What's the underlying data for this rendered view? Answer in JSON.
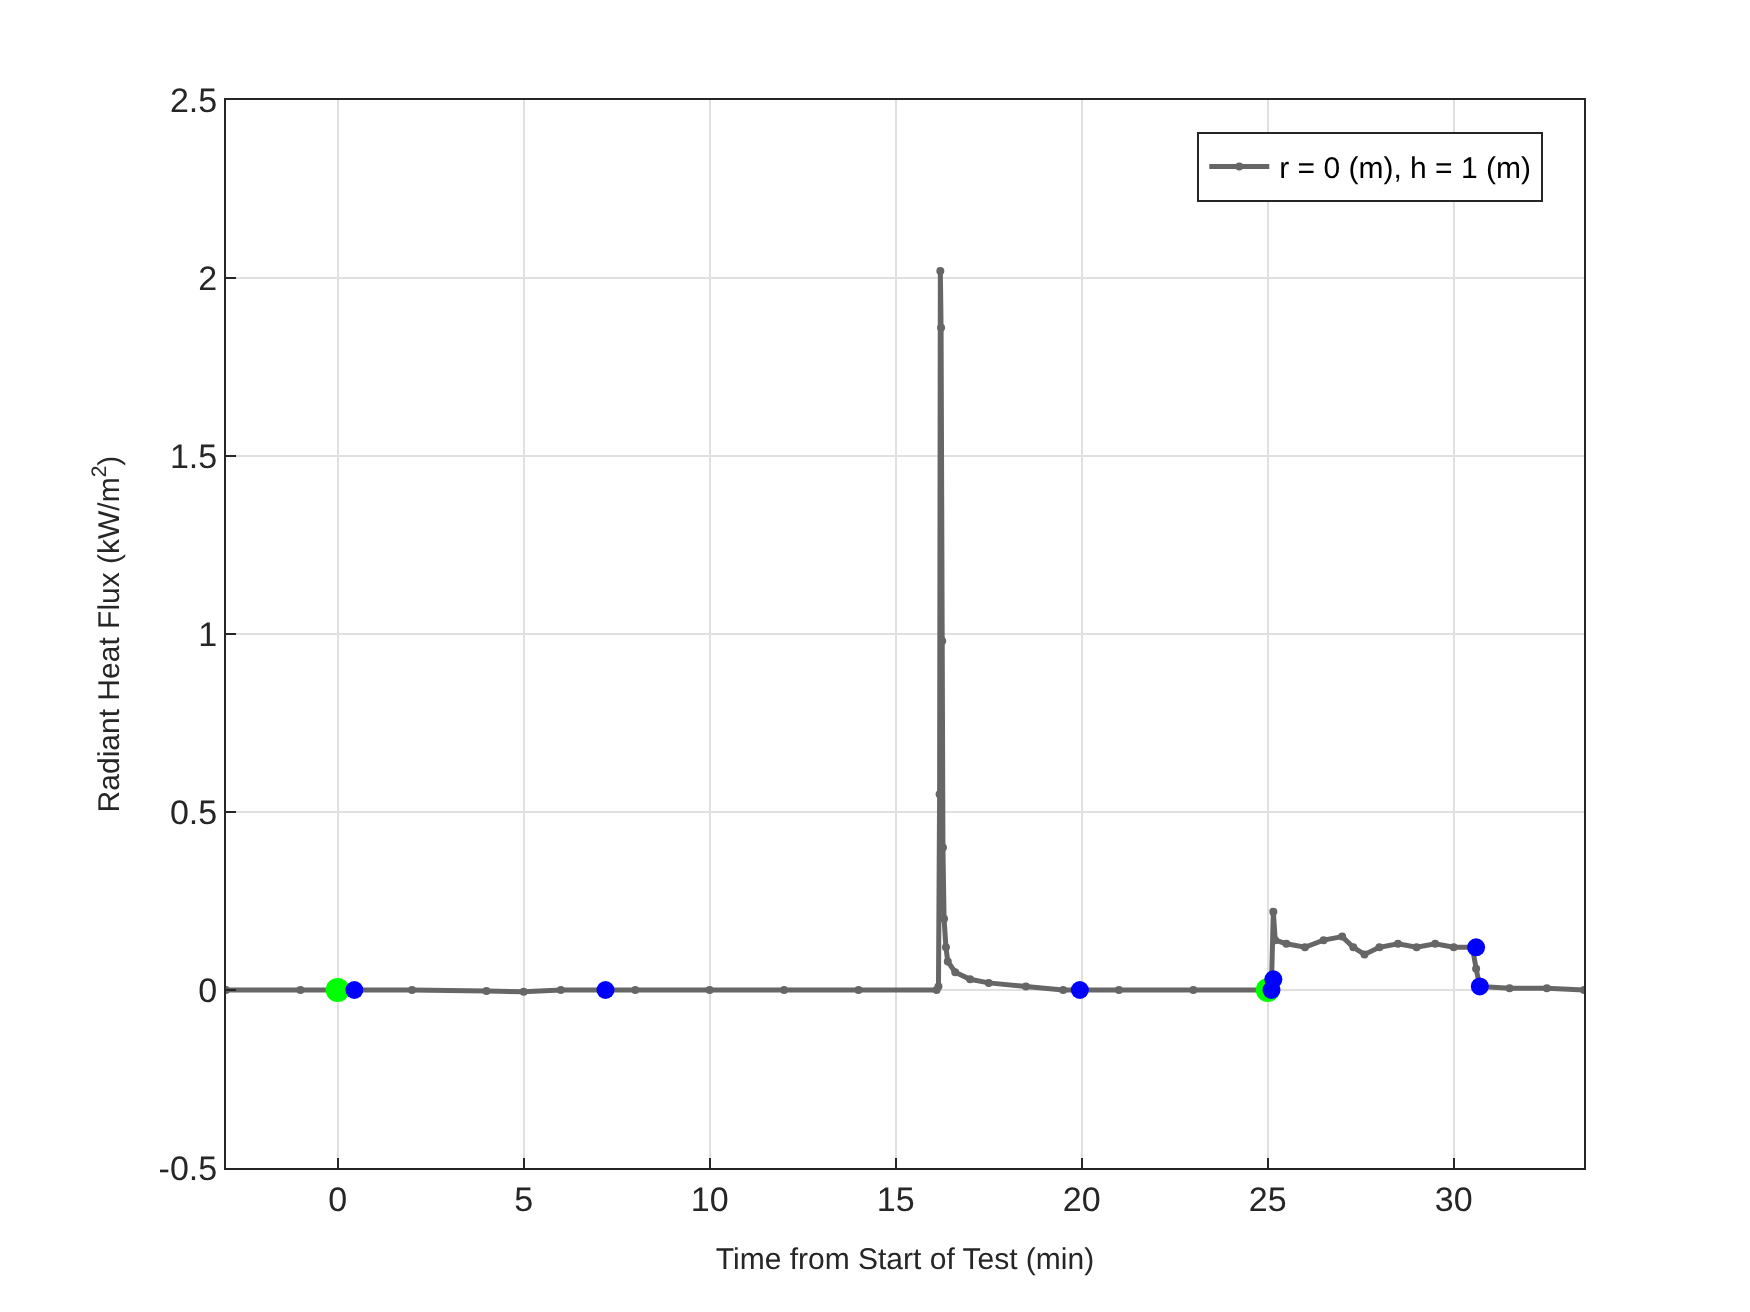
{
  "chart_data": {
    "type": "line",
    "xlabel": "Time from Start of Test (min)",
    "ylabel": "Radiant Heat Flux (kW/m$^{2}$)",
    "xlim": [
      -3,
      33.5
    ],
    "xticks": [
      0,
      5,
      10,
      15,
      20,
      25,
      30
    ],
    "ylim": [
      -0.5,
      2.5
    ],
    "yticks": [
      -0.5,
      0,
      0.5,
      1,
      1.5,
      2,
      2.5
    ],
    "grid": true,
    "legend": "top right",
    "line_style": "solid",
    "series": [
      {
        "name": "r = 0 (m), h = 1 (m)",
        "marker": "circle",
        "color": "#666666",
        "x": [
          -3,
          -1,
          0,
          2,
          4,
          5,
          6,
          8,
          10,
          12,
          14,
          16.1,
          16.15,
          16.18,
          16.2,
          16.22,
          16.25,
          16.27,
          16.3,
          16.35,
          16.4,
          16.6,
          17,
          17.5,
          18.5,
          19.5,
          21,
          23,
          25,
          25.1,
          25.15,
          25.2,
          25.5,
          26,
          26.5,
          27,
          27.3,
          27.6,
          28,
          28.5,
          29,
          29.5,
          30,
          30.5,
          30.6,
          30.7,
          31.5,
          32.5,
          33.5
        ],
        "values": [
          0,
          0,
          0,
          0,
          -0.003,
          -0.005,
          0,
          0,
          0,
          0,
          0,
          0,
          0.01,
          0.55,
          2.02,
          1.86,
          0.98,
          0.4,
          0.2,
          0.12,
          0.08,
          0.05,
          0.03,
          0.02,
          0.01,
          0,
          0,
          0,
          0,
          0.02,
          0.22,
          0.14,
          0.13,
          0.12,
          0.14,
          0.15,
          0.12,
          0.1,
          0.12,
          0.13,
          0.12,
          0.13,
          0.12,
          0.12,
          0.06,
          0.01,
          0.005,
          0.005,
          0
        ]
      },
      {
        "type": "scatter",
        "marker": "circle",
        "color": "#00ff00",
        "x": [
          0,
          25.0
        ],
        "values": [
          0,
          0
        ]
      },
      {
        "type": "scatter",
        "marker": "circle",
        "color": "#0000ff",
        "x": [
          0.45,
          7.2,
          19.95,
          25.1,
          25.15,
          30.6,
          30.7
        ],
        "values": [
          0,
          0,
          0,
          0,
          0.03,
          0.12,
          0.01
        ]
      }
    ]
  }
}
